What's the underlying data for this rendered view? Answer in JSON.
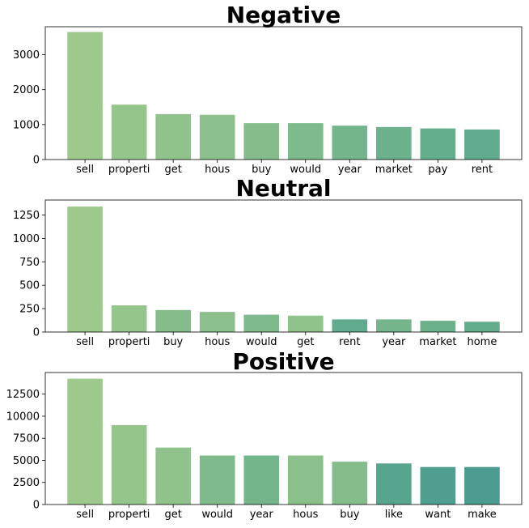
{
  "chart_data": [
    {
      "type": "bar",
      "title": "Negative",
      "categories": [
        "sell",
        "properti",
        "get",
        "hous",
        "buy",
        "would",
        "year",
        "market",
        "pay",
        "rent"
      ],
      "values": [
        3650,
        1570,
        1300,
        1280,
        1040,
        1040,
        970,
        930,
        890,
        860
      ],
      "colors": [
        "#9dc98d",
        "#95c48c",
        "#90c28b",
        "#8cc08b",
        "#84bc8b",
        "#7fba8c",
        "#75b58c",
        "#6cb18c",
        "#64ad8d",
        "#60ab8d"
      ],
      "yticks": [
        0,
        1000,
        2000,
        3000
      ],
      "ylim": [
        0,
        3800
      ],
      "xlabel": "",
      "ylabel": "",
      "grid": false
    },
    {
      "type": "bar",
      "title": "Neutral",
      "categories": [
        "sell",
        "properti",
        "buy",
        "hous",
        "would",
        "get",
        "rent",
        "year",
        "market",
        "home"
      ],
      "values": [
        1340,
        285,
        235,
        215,
        185,
        175,
        135,
        135,
        120,
        110
      ],
      "colors": [
        "#9dc98d",
        "#95c48c",
        "#84bc8b",
        "#8cc08b",
        "#7fba8c",
        "#90c28b",
        "#60ab8d",
        "#75b58c",
        "#6cb18c",
        "#63ad8d"
      ],
      "yticks": [
        0,
        250,
        500,
        750,
        1000,
        1250
      ],
      "ylim": [
        0,
        1410
      ],
      "xlabel": "",
      "ylabel": "",
      "grid": false
    },
    {
      "type": "bar",
      "title": "Positive",
      "categories": [
        "sell",
        "properti",
        "get",
        "would",
        "year",
        "hous",
        "buy",
        "like",
        "want",
        "make"
      ],
      "values": [
        14250,
        9000,
        6450,
        5550,
        5550,
        5550,
        4850,
        4650,
        4250,
        4250
      ],
      "colors": [
        "#9dc98d",
        "#95c48c",
        "#90c28b",
        "#7fba8c",
        "#75b58c",
        "#8cc08b",
        "#84bc8b",
        "#57a58e",
        "#509e8f",
        "#4c9b90"
      ],
      "yticks": [
        0,
        2500,
        5000,
        7500,
        10000,
        12500
      ],
      "ylim": [
        0,
        14950
      ],
      "xlabel": "",
      "ylabel": "",
      "grid": false
    }
  ]
}
